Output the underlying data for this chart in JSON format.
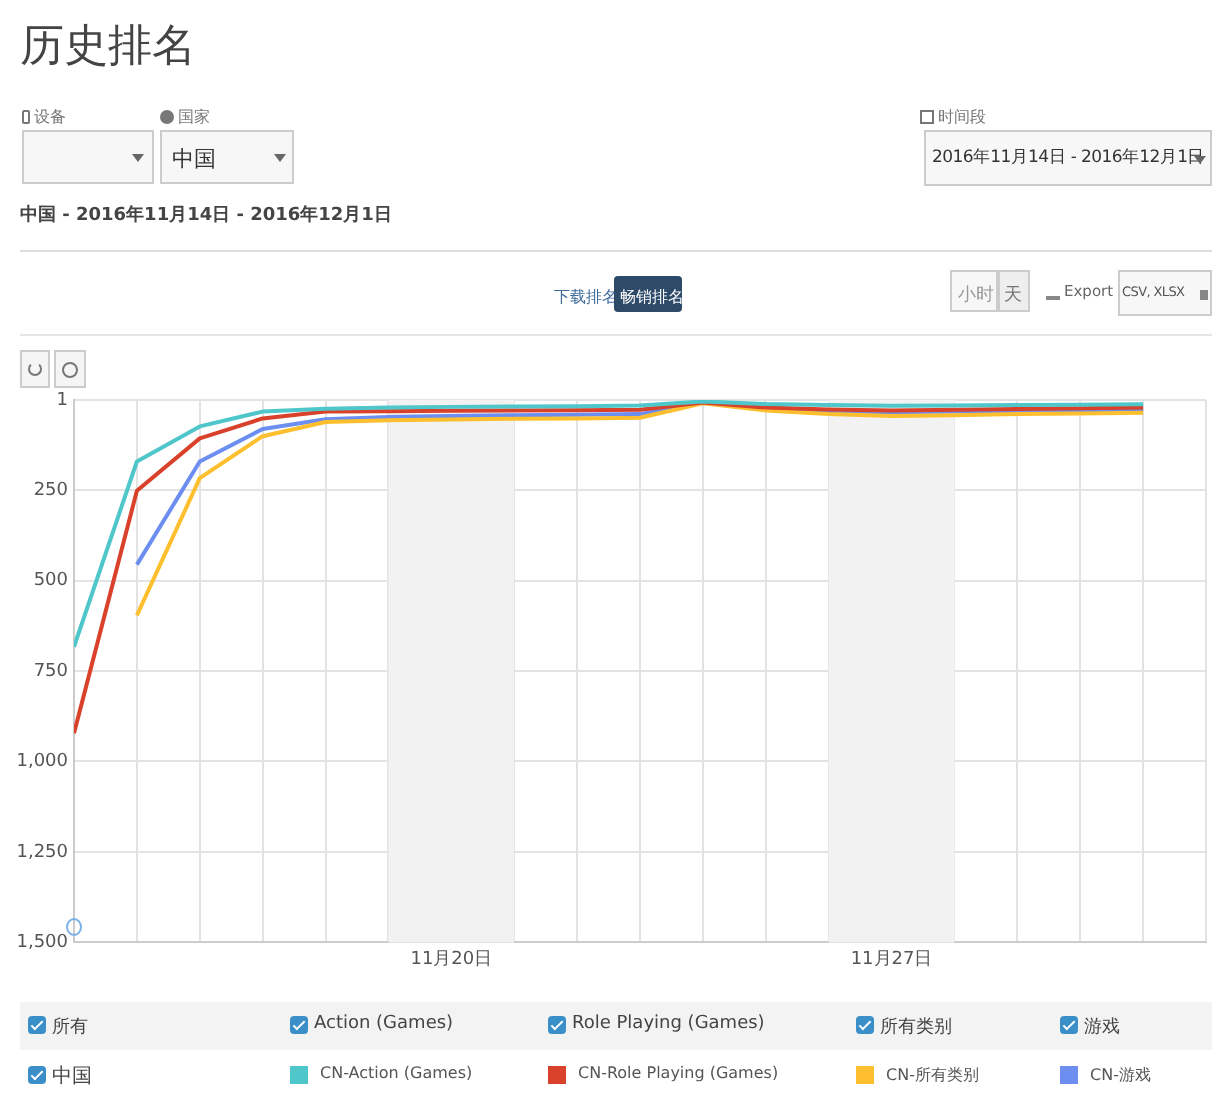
{
  "chart_data": {
    "type": "line",
    "title": "历史排名",
    "subtitle": "中国 - 2016年11月14日 - 2016年12月1日",
    "annotations": [
      "设备",
      "国家",
      "中国",
      "时间段",
      "2016年11月14日 - 2016年12月1日",
      "下载排名",
      "畅销排名",
      "小时",
      "天",
      "Export",
      "CSV, XLSX",
      "所有",
      "Action (Games)",
      "Role Playing (Games)",
      "所有类别",
      "游戏",
      "中国"
    ],
    "x": [
      "2016-11-14",
      "2016-11-15",
      "2016-11-16",
      "2016-11-17",
      "2016-11-18",
      "2016-11-19",
      "2016-11-20",
      "2016-11-21",
      "2016-11-22",
      "2016-11-23",
      "2016-11-24",
      "2016-11-25",
      "2016-11-26",
      "2016-11-27",
      "2016-11-28",
      "2016-11-29",
      "2016-11-30",
      "2016-12-01"
    ],
    "series": [
      {
        "name": "CN-Action (Games)",
        "color": "#4fc6c9",
        "values": [
          683,
          171,
          74,
          33,
          25,
          22,
          20,
          19,
          18,
          16,
          5,
          12,
          15,
          17,
          16,
          15,
          14,
          13
        ]
      },
      {
        "name": "CN-Role Playing (Games)",
        "color": "#d9412b",
        "values": [
          922,
          252,
          107,
          52,
          33,
          32,
          31,
          30,
          29,
          28,
          8,
          22,
          27,
          30,
          28,
          26,
          24,
          22
        ]
      },
      {
        "name": "CN-所有类别",
        "color": "#fdbf2d",
        "values": [
          null,
          596,
          217,
          101,
          62,
          57,
          55,
          53,
          52,
          50,
          10,
          30,
          40,
          45,
          43,
          40,
          38,
          36
        ]
      },
      {
        "name": "CN-游戏",
        "color": "#6b8ef0",
        "values": [
          null,
          456,
          171,
          81,
          54,
          48,
          45,
          43,
          42,
          40,
          7,
          25,
          32,
          35,
          33,
          32,
          30,
          28
        ]
      }
    ],
    "xlim": [
      "2016-11-14",
      "2016-12-02"
    ],
    "xticks": [
      {
        "value": "2016-11-14",
        "label": null
      },
      {
        "value": "2016-11-15",
        "label": null
      },
      {
        "value": "2016-11-16",
        "label": null
      },
      {
        "value": "2016-11-17",
        "label": null
      },
      {
        "value": "2016-11-18",
        "label": null
      },
      {
        "value": "2016-11-19",
        "label": null
      },
      {
        "value": "2016-11-20",
        "label": "11月20日"
      },
      {
        "value": "2016-11-21",
        "label": null
      },
      {
        "value": "2016-11-22",
        "label": null
      },
      {
        "value": "2016-11-23",
        "label": null
      },
      {
        "value": "2016-11-24",
        "label": null
      },
      {
        "value": "2016-11-25",
        "label": null
      },
      {
        "value": "2016-11-26",
        "label": null
      },
      {
        "value": "2016-11-27",
        "label": "11月27日"
      },
      {
        "value": "2016-11-28",
        "label": null
      },
      {
        "value": "2016-11-29",
        "label": null
      },
      {
        "value": "2016-11-30",
        "label": null
      },
      {
        "value": "2016-12-01",
        "label": null
      },
      {
        "value": "2016-12-02",
        "label": null
      }
    ],
    "ylim": [
      1500,
      1
    ],
    "yticks": [
      1,
      250,
      500,
      750,
      {
        "value": 1000,
        "label": "1,000"
      },
      {
        "value": 1250,
        "label": "1,250"
      },
      {
        "value": 1500,
        "label": "1,500"
      }
    ],
    "bands": [
      {
        "axis": "x",
        "from": "2016-11-19",
        "to": "2016-11-21",
        "color": "#f2f2f2"
      },
      {
        "axis": "x",
        "from": "2016-11-26",
        "to": "2016-11-28",
        "color": "#f2f2f2"
      }
    ],
    "grid": true,
    "legend": "bottom",
    "marker": "none",
    "line_style": "solid"
  }
}
